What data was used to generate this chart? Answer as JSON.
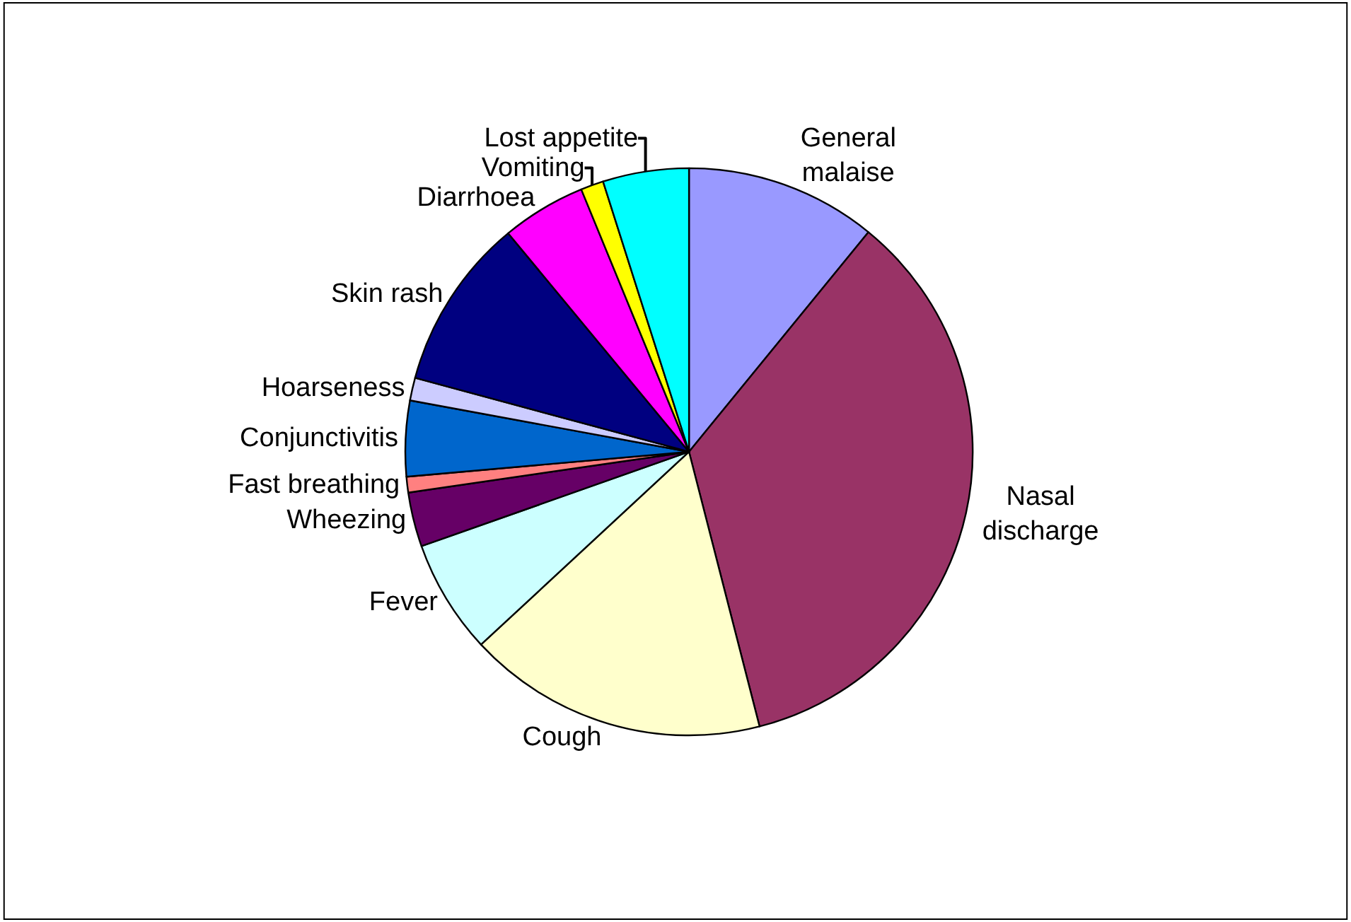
{
  "chart_data": {
    "type": "pie",
    "categories": [
      "General malaise",
      "Nasal discharge",
      "Cough",
      "Fever",
      "Wheezing",
      "Fast breathing",
      "Conjunctivitis",
      "Hoarseness",
      "Skin rash",
      "Diarrhoea",
      "Vomiting",
      "Lost appetite"
    ],
    "values": [
      10.9,
      35.1,
      17.1,
      6.5,
      3.1,
      0.9,
      4.3,
      1.3,
      9.8,
      4.8,
      1.3,
      4.9
    ],
    "colors": [
      "#9999ff",
      "#993366",
      "#ffffcc",
      "#ccffff",
      "#660066",
      "#ff8080",
      "#0066cc",
      "#ccccff",
      "#000080",
      "#ff00ff",
      "#ffff00",
      "#00ffff"
    ],
    "legend": false
  }
}
